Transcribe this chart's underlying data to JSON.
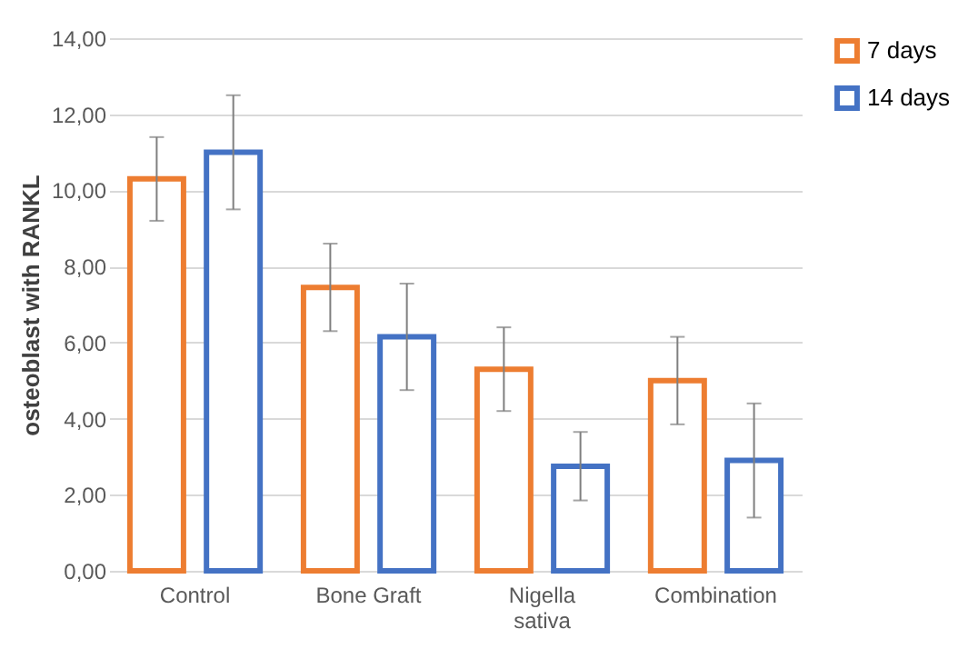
{
  "chart_data": {
    "type": "bar",
    "ylabel": "osteoblast with RANKL",
    "categories": [
      "Control",
      "Bone Graft",
      "Nigella\nsativa",
      "Combination"
    ],
    "series": [
      {
        "name": "7 days",
        "color": "#ed7d31",
        "values": [
          10.3,
          7.45,
          5.3,
          5.0
        ],
        "errors": [
          1.1,
          1.15,
          1.1,
          1.15
        ]
      },
      {
        "name": "14 days",
        "color": "#4472c4",
        "values": [
          11.0,
          6.15,
          2.75,
          2.9
        ],
        "errors": [
          1.5,
          1.4,
          0.9,
          1.5
        ]
      }
    ],
    "ylim": [
      0,
      14
    ],
    "yticks": [
      {
        "value": 0,
        "label": "0,00"
      },
      {
        "value": 2,
        "label": "2,00"
      },
      {
        "value": 4,
        "label": "4,00"
      },
      {
        "value": 6,
        "label": "6,00"
      },
      {
        "value": 8,
        "label": "8,00"
      },
      {
        "value": 10,
        "label": "10,00"
      },
      {
        "value": 12,
        "label": "12,00"
      },
      {
        "value": 14,
        "label": "14,00"
      }
    ],
    "grid": "y",
    "legend": "right"
  }
}
